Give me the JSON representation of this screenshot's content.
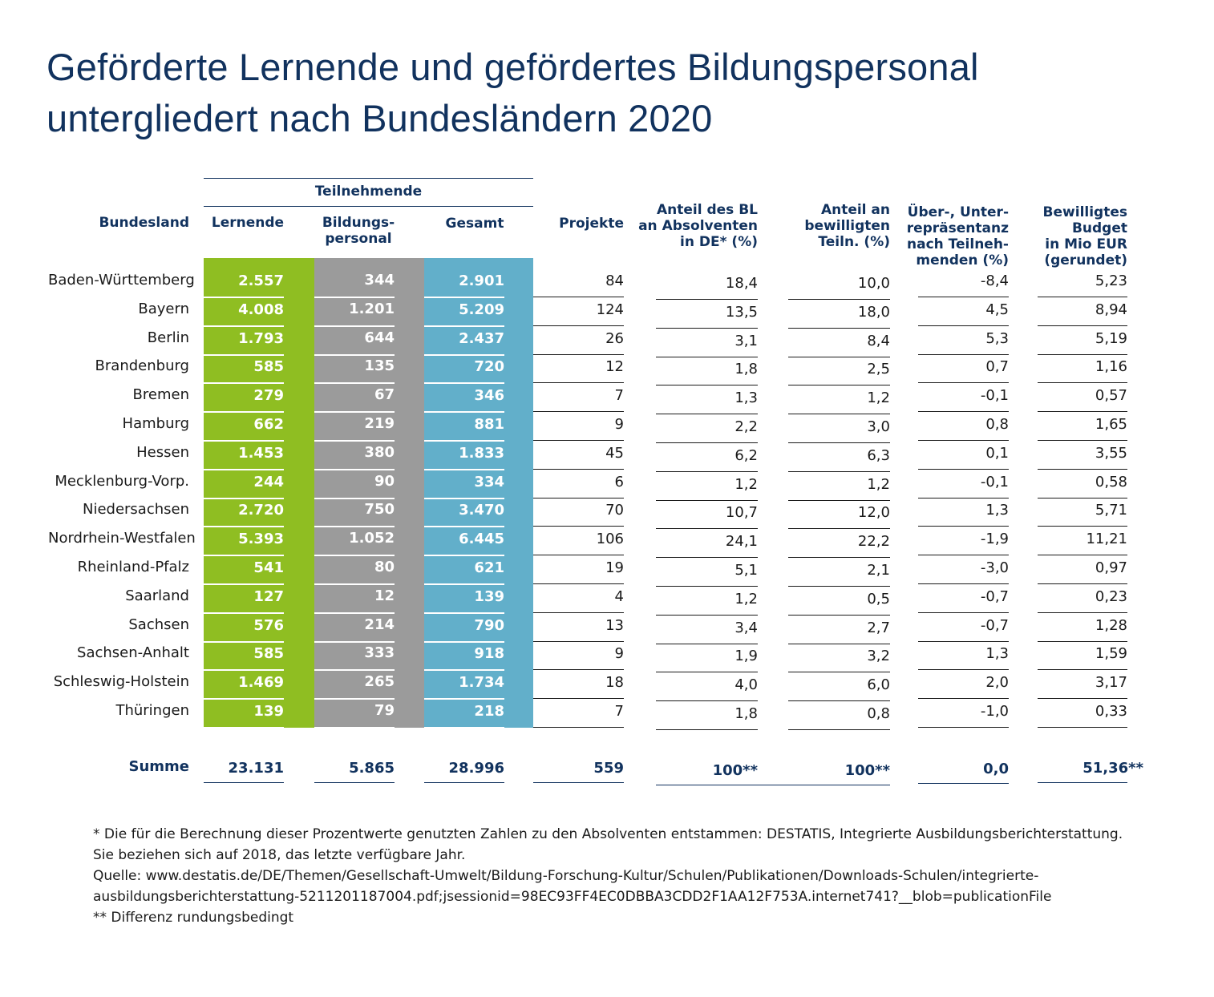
{
  "title": {
    "line1": "Geförderte Lernende und gefördertes Bildungspersonal",
    "line2": "untergliedert nach Bundesländern 2020"
  },
  "headers": {
    "group": "Teilnehmende",
    "bundesland": "Bundesland",
    "lernende": "Lernende",
    "bildungs_1": "Bildungs-",
    "bildungs_2": "personal",
    "gesamt": "Gesamt",
    "projekte": "Projekte",
    "anteil_bl_1": "Anteil des BL",
    "anteil_bl_2": "an Absolventen",
    "anteil_bl_3": "in DE* (%)",
    "anteil_teiln_1": "Anteil an",
    "anteil_teiln_2": "bewilligten",
    "anteil_teiln_3": "Teiln. (%)",
    "ueber_1": "Über-, Unter-",
    "ueber_2": "repräsentanz",
    "ueber_3": "nach Teilneh-",
    "ueber_4": "menden (%)",
    "budget_1": "Bewilligtes",
    "budget_2": "Budget",
    "budget_3": "in Mio EUR",
    "budget_4": "(gerundet)"
  },
  "rows": [
    {
      "state": "Baden-Württemberg",
      "lernende": "2.557",
      "personal": "344",
      "gesamt": "2.901",
      "projekte": "84",
      "anteil_bl": "18,4",
      "anteil_teiln": "10,0",
      "repr": "-8,4",
      "budget": "5,23"
    },
    {
      "state": "Bayern",
      "lernende": "4.008",
      "personal": "1.201",
      "gesamt": "5.209",
      "projekte": "124",
      "anteil_bl": "13,5",
      "anteil_teiln": "18,0",
      "repr": "4,5",
      "budget": "8,94"
    },
    {
      "state": "Berlin",
      "lernende": "1.793",
      "personal": "644",
      "gesamt": "2.437",
      "projekte": "26",
      "anteil_bl": "3,1",
      "anteil_teiln": "8,4",
      "repr": "5,3",
      "budget": "5,19"
    },
    {
      "state": "Brandenburg",
      "lernende": "585",
      "personal": "135",
      "gesamt": "720",
      "projekte": "12",
      "anteil_bl": "1,8",
      "anteil_teiln": "2,5",
      "repr": "0,7",
      "budget": "1,16"
    },
    {
      "state": "Bremen",
      "lernende": "279",
      "personal": "67",
      "gesamt": "346",
      "projekte": "7",
      "anteil_bl": "1,3",
      "anteil_teiln": "1,2",
      "repr": "-0,1",
      "budget": "0,57"
    },
    {
      "state": "Hamburg",
      "lernende": "662",
      "personal": "219",
      "gesamt": "881",
      "projekte": "9",
      "anteil_bl": "2,2",
      "anteil_teiln": "3,0",
      "repr": "0,8",
      "budget": "1,65"
    },
    {
      "state": "Hessen",
      "lernende": "1.453",
      "personal": "380",
      "gesamt": "1.833",
      "projekte": "45",
      "anteil_bl": "6,2",
      "anteil_teiln": "6,3",
      "repr": "0,1",
      "budget": "3,55"
    },
    {
      "state": "Mecklenburg-Vorp.",
      "lernende": "244",
      "personal": "90",
      "gesamt": "334",
      "projekte": "6",
      "anteil_bl": "1,2",
      "anteil_teiln": "1,2",
      "repr": "-0,1",
      "budget": "0,58"
    },
    {
      "state": "Niedersachsen",
      "lernende": "2.720",
      "personal": "750",
      "gesamt": "3.470",
      "projekte": "70",
      "anteil_bl": "10,7",
      "anteil_teiln": "12,0",
      "repr": "1,3",
      "budget": "5,71"
    },
    {
      "state": "Nordrhein-Westfalen",
      "lernende": "5.393",
      "personal": "1.052",
      "gesamt": "6.445",
      "projekte": "106",
      "anteil_bl": "24,1",
      "anteil_teiln": "22,2",
      "repr": "-1,9",
      "budget": "11,21"
    },
    {
      "state": "Rheinland-Pfalz",
      "lernende": "541",
      "personal": "80",
      "gesamt": "621",
      "projekte": "19",
      "anteil_bl": "5,1",
      "anteil_teiln": "2,1",
      "repr": "-3,0",
      "budget": "0,97"
    },
    {
      "state": "Saarland",
      "lernende": "127",
      "personal": "12",
      "gesamt": "139",
      "projekte": "4",
      "anteil_bl": "1,2",
      "anteil_teiln": "0,5",
      "repr": "-0,7",
      "budget": "0,23"
    },
    {
      "state": "Sachsen",
      "lernende": "576",
      "personal": "214",
      "gesamt": "790",
      "projekte": "13",
      "anteil_bl": "3,4",
      "anteil_teiln": "2,7",
      "repr": "-0,7",
      "budget": "1,28"
    },
    {
      "state": "Sachsen-Anhalt",
      "lernende": "585",
      "personal": "333",
      "gesamt": "918",
      "projekte": "9",
      "anteil_bl": "1,9",
      "anteil_teiln": "3,2",
      "repr": "1,3",
      "budget": "1,59"
    },
    {
      "state": "Schleswig-Holstein",
      "lernende": "1.469",
      "personal": "265",
      "gesamt": "1.734",
      "projekte": "18",
      "anteil_bl": "4,0",
      "anteil_teiln": "6,0",
      "repr": "2,0",
      "budget": "3,17"
    },
    {
      "state": "Thüringen",
      "lernende": "139",
      "personal": "79",
      "gesamt": "218",
      "projekte": "7",
      "anteil_bl": "1,8",
      "anteil_teiln": "0,8",
      "repr": "-1,0",
      "budget": "0,33"
    }
  ],
  "summe": {
    "label": "Summe",
    "lernende": "23.131",
    "personal": "5.865",
    "gesamt": "28.996",
    "projekte": "559",
    "anteil_bl": "100**",
    "anteil_teiln": "100**",
    "repr": "0,0",
    "budget": "51,36**"
  },
  "footnotes": {
    "line1": "* Die für die Berechnung dieser Prozentwerte genutzten Zahlen zu den Absolventen entstammen: DESTATIS, Integrierte Ausbildungsberichterstattung.",
    "line2": "Sie beziehen sich auf 2018, das letzte verfügbare Jahr.",
    "line3": "Quelle: www.destatis.de/DE/Themen/Gesellschaft-Umwelt/Bildung-Forschung-Kultur/Schulen/Publikationen/Downloads-Schulen/integrierte-",
    "line4": "ausbildungsberichterstattung-5211201187004.pdf;jsessionid=98EC93FF4EC0DBBA3CDD2F1AA12F753A.internet741?__blob=publicationFile",
    "line5": "** Differenz rundungsbedingt"
  },
  "colors": {
    "title": "#11325e",
    "lernende_band": "#8fbe22",
    "personal_band": "#9b9b9b",
    "gesamt_band": "#62afca"
  }
}
